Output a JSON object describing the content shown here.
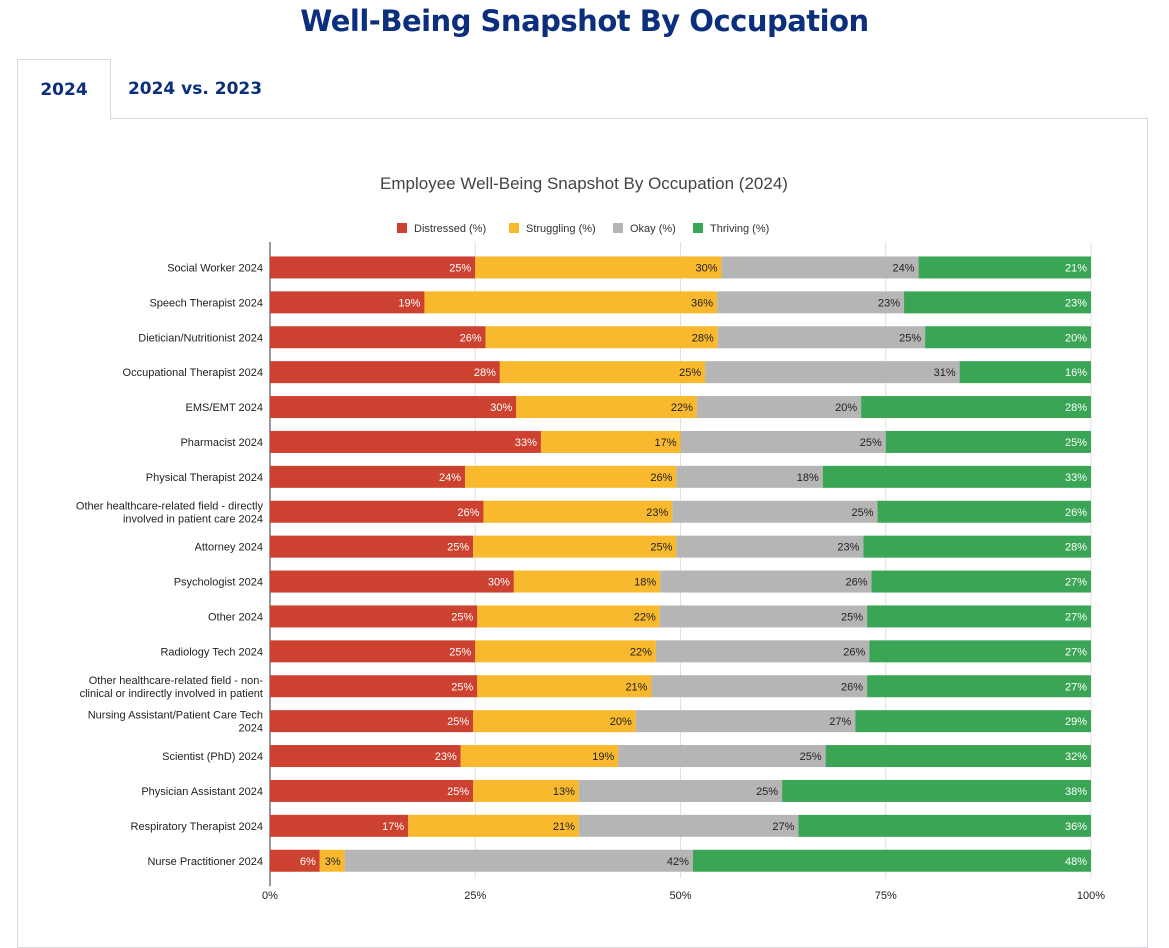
{
  "header": {
    "title": "Well-Being Snapshot By Occupation"
  },
  "tabs": [
    {
      "label": "2024",
      "active": true
    },
    {
      "label": "2024 vs. 2023",
      "active": false
    }
  ],
  "chart_data": {
    "type": "bar",
    "orientation": "horizontal",
    "stacked": "percent",
    "title": "Employee Well-Being Snapshot By Occupation (2024)",
    "legend_position": "top",
    "xlim": [
      0,
      100
    ],
    "x_ticks": [
      "0%",
      "25%",
      "50%",
      "75%",
      "100%"
    ],
    "grid": true,
    "categories": [
      "Social Worker 2024",
      "Speech Therapist 2024",
      "Dietician/Nutritionist 2024",
      "Occupational Therapist 2024",
      "EMS/EMT 2024",
      "Pharmacist 2024",
      "Physical Therapist 2024",
      "Other healthcare-related field - directly involved in patient care 2024",
      "Attorney 2024",
      "Psychologist 2024",
      "Other 2024",
      "Radiology Tech 2024",
      "Other healthcare-related field - non-clinical or indirectly involved in patient",
      "Nursing Assistant/Patient Care Tech 2024",
      "Scientist (PhD) 2024",
      "Physician Assistant 2024",
      "Respiratory Therapist 2024",
      "Nurse Practitioner 2024"
    ],
    "category_lines": [
      [
        "Social Worker 2024"
      ],
      [
        "Speech Therapist 2024"
      ],
      [
        "Dietician/Nutritionist 2024"
      ],
      [
        "Occupational Therapist 2024"
      ],
      [
        "EMS/EMT 2024"
      ],
      [
        "Pharmacist 2024"
      ],
      [
        "Physical Therapist 2024"
      ],
      [
        "Other healthcare-related field - directly",
        "involved in patient care 2024"
      ],
      [
        "Attorney 2024"
      ],
      [
        "Psychologist 2024"
      ],
      [
        "Other 2024"
      ],
      [
        "Radiology Tech 2024"
      ],
      [
        "Other healthcare-related field - non-",
        "clinical or indirectly involved in patient"
      ],
      [
        "Nursing Assistant/Patient Care Tech",
        "2024"
      ],
      [
        "Scientist (PhD) 2024"
      ],
      [
        "Physician Assistant 2024"
      ],
      [
        "Respiratory Therapist 2024"
      ],
      [
        "Nurse Practitioner 2024"
      ]
    ],
    "series": [
      {
        "name": "Distressed (%)",
        "color": "#cc4130",
        "label_color": "#ffffff",
        "values": [
          25,
          19,
          26,
          28,
          30,
          33,
          24,
          26,
          25,
          30,
          25,
          25,
          25,
          25,
          23,
          25,
          17,
          6
        ]
      },
      {
        "name": "Struggling (%)",
        "color": "#f8b92f",
        "label_color": "#222222",
        "values": [
          30,
          36,
          28,
          25,
          22,
          17,
          26,
          23,
          25,
          18,
          22,
          22,
          21,
          20,
          19,
          13,
          21,
          3
        ]
      },
      {
        "name": "Okay (%)",
        "color": "#b5b5b5",
        "label_color": "#222222",
        "values": [
          24,
          23,
          25,
          31,
          20,
          25,
          18,
          25,
          23,
          26,
          25,
          26,
          26,
          27,
          25,
          25,
          27,
          42
        ]
      },
      {
        "name": "Thriving (%)",
        "color": "#3aa655",
        "label_color": "#ffffff",
        "values": [
          21,
          23,
          20,
          16,
          28,
          25,
          33,
          26,
          28,
          27,
          27,
          27,
          27,
          29,
          32,
          38,
          36,
          48
        ]
      }
    ]
  }
}
